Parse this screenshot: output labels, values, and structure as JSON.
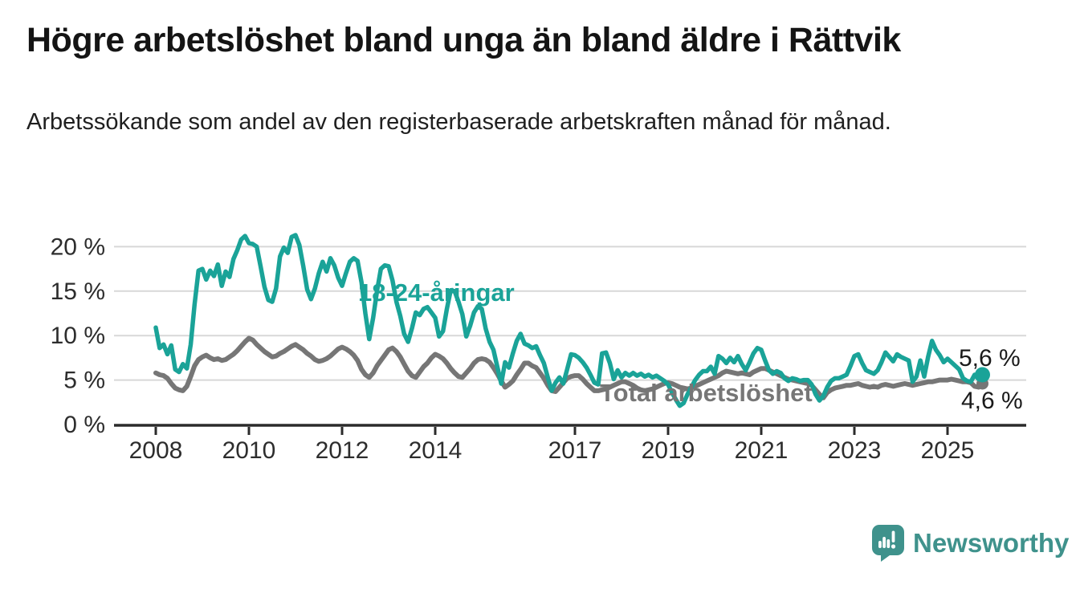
{
  "title": "Högre arbetslöshet bland unga än bland äldre i Rättvik",
  "subtitle": "Arbetssökande som andel av den registerbaserade arbetskraften månad för månad.",
  "branding": {
    "logo_text": "Newsworthy",
    "logo_color": "#3F928C",
    "logo_icon": "speech-bubble-bar-chart-icon"
  },
  "chart_data": {
    "type": "line",
    "title": "",
    "xlabel": "",
    "ylabel": "",
    "x_start_month": "2008-01",
    "x_end_month": "2025-10",
    "months_per_point": 1,
    "ylim": [
      0,
      22
    ],
    "grid": "horizontal",
    "y_ticks": [
      {
        "value": 0,
        "label": "0 %"
      },
      {
        "value": 5,
        "label": "5 %"
      },
      {
        "value": 10,
        "label": "10 %"
      },
      {
        "value": 15,
        "label": "15 %"
      },
      {
        "value": 20,
        "label": "20 %"
      }
    ],
    "x_ticks": [
      {
        "year": 2008,
        "label": "2008"
      },
      {
        "year": 2010,
        "label": "2010"
      },
      {
        "year": 2012,
        "label": "2012"
      },
      {
        "year": 2014,
        "label": "2014"
      },
      {
        "year": 2017,
        "label": "2017"
      },
      {
        "year": 2019,
        "label": "2019"
      },
      {
        "year": 2021,
        "label": "2021"
      },
      {
        "year": 2023,
        "label": "2023"
      },
      {
        "year": 2025,
        "label": "2025"
      }
    ],
    "series": [
      {
        "name": "Total arbetslöshet",
        "color": "#767676",
        "end_label": "4,6 %",
        "end_dot": true,
        "values": [
          5.8,
          5.6,
          5.5,
          5.2,
          4.6,
          4.1,
          3.9,
          3.8,
          4.3,
          5.4,
          6.6,
          7.3,
          7.6,
          7.8,
          7.5,
          7.3,
          7.4,
          7.2,
          7.3,
          7.6,
          7.9,
          8.3,
          8.8,
          9.3,
          9.7,
          9.5,
          9.0,
          8.6,
          8.2,
          7.9,
          7.6,
          7.7,
          8.0,
          8.2,
          8.5,
          8.8,
          9.0,
          8.7,
          8.4,
          8.0,
          7.7,
          7.3,
          7.1,
          7.2,
          7.4,
          7.7,
          8.1,
          8.5,
          8.7,
          8.5,
          8.2,
          7.8,
          7.2,
          6.2,
          5.6,
          5.3,
          5.8,
          6.6,
          7.2,
          7.8,
          8.4,
          8.6,
          8.2,
          7.6,
          6.8,
          6.0,
          5.5,
          5.3,
          5.9,
          6.5,
          6.9,
          7.5,
          7.9,
          7.7,
          7.4,
          6.9,
          6.3,
          5.8,
          5.4,
          5.3,
          5.8,
          6.3,
          6.9,
          7.3,
          7.4,
          7.3,
          7.0,
          6.4,
          5.7,
          4.9,
          4.2,
          4.5,
          4.9,
          5.6,
          6.2,
          6.9,
          6.9,
          6.6,
          6.4,
          5.8,
          5.2,
          4.4,
          3.8,
          3.7,
          4.2,
          4.7,
          5.2,
          5.4,
          5.5,
          5.5,
          5.1,
          4.6,
          4.2,
          3.8,
          3.8,
          3.9,
          4.0,
          4.2,
          4.4,
          4.6,
          4.8,
          4.8,
          4.6,
          4.4,
          4.1,
          3.9,
          3.8,
          3.9,
          4.0,
          4.2,
          4.4,
          4.6,
          4.7,
          4.6,
          4.4,
          4.2,
          4.1,
          4.0,
          4.1,
          4.3,
          4.5,
          4.7,
          4.9,
          5.1,
          5.3,
          5.5,
          5.8,
          6.0,
          5.9,
          5.8,
          5.7,
          5.8,
          5.7,
          5.6,
          5.9,
          6.1,
          6.3,
          6.3,
          6.1,
          5.9,
          5.7,
          5.5,
          5.3,
          5.1,
          5.0,
          4.9,
          4.8,
          4.7,
          4.6,
          4.4,
          3.9,
          3.4,
          3.0,
          3.6,
          3.9,
          4.1,
          4.2,
          4.3,
          4.4,
          4.4,
          4.5,
          4.6,
          4.4,
          4.3,
          4.2,
          4.3,
          4.2,
          4.4,
          4.5,
          4.4,
          4.3,
          4.4,
          4.5,
          4.6,
          4.5,
          4.4,
          4.5,
          4.6,
          4.7,
          4.8,
          4.8,
          4.9,
          5.0,
          5.0,
          5.0,
          5.1,
          5.0,
          4.9,
          4.8,
          4.8,
          4.7,
          4.3,
          4.2,
          4.6
        ]
      },
      {
        "name": "18-24-åringar",
        "color": "#1AA398",
        "end_label": "5,6 %",
        "end_dot": true,
        "values": [
          10.9,
          8.6,
          9.0,
          7.9,
          8.9,
          6.2,
          5.9,
          6.8,
          6.3,
          9.0,
          13.5,
          17.3,
          17.5,
          16.3,
          17.3,
          16.7,
          18.0,
          15.6,
          17.2,
          16.6,
          18.6,
          19.6,
          20.8,
          21.2,
          20.4,
          20.3,
          20.0,
          17.8,
          15.5,
          14.0,
          13.8,
          15.3,
          18.9,
          19.9,
          19.3,
          21.1,
          21.3,
          20.2,
          17.8,
          15.2,
          14.1,
          15.3,
          17.0,
          18.3,
          17.2,
          18.7,
          17.9,
          16.5,
          15.6,
          17.0,
          18.3,
          18.7,
          18.4,
          16.0,
          12.5,
          9.6,
          12.0,
          15.0,
          17.5,
          17.9,
          17.8,
          16.2,
          13.8,
          12.2,
          10.2,
          9.3,
          10.8,
          12.6,
          12.3,
          13.0,
          13.2,
          12.6,
          12.0,
          9.9,
          10.5,
          13.0,
          15.1,
          15.0,
          13.8,
          12.4,
          9.9,
          11.1,
          12.6,
          13.3,
          13.0,
          10.8,
          9.3,
          8.4,
          6.5,
          4.6,
          7.0,
          6.4,
          8.0,
          9.4,
          10.2,
          9.1,
          8.9,
          8.6,
          8.8,
          7.8,
          6.9,
          5.3,
          3.8,
          4.7,
          5.3,
          4.6,
          6.2,
          7.9,
          7.8,
          7.5,
          7.0,
          6.4,
          5.6,
          4.7,
          4.5,
          8.0,
          8.1,
          6.9,
          5.1,
          6.1,
          5.3,
          5.8,
          5.5,
          5.8,
          5.5,
          5.7,
          5.4,
          5.6,
          5.3,
          5.5,
          5.2,
          4.9,
          4.5,
          3.6,
          2.8,
          2.1,
          2.4,
          3.4,
          4.2,
          5.0,
          5.6,
          6.0,
          6.0,
          6.5,
          5.7,
          7.7,
          7.4,
          6.9,
          7.5,
          7.0,
          7.7,
          6.8,
          6.1,
          7.0,
          8.0,
          8.6,
          8.4,
          7.2,
          6.1,
          5.7,
          6.0,
          5.8,
          5.2,
          4.9,
          5.2,
          5.1,
          4.9,
          5.0,
          5.0,
          4.5,
          3.4,
          2.7,
          3.2,
          4.2,
          4.9,
          5.2,
          5.2,
          5.4,
          5.6,
          6.6,
          7.7,
          7.9,
          6.9,
          6.1,
          5.9,
          5.7,
          6.1,
          7.0,
          8.1,
          7.6,
          7.1,
          7.9,
          7.6,
          7.4,
          7.2,
          4.8,
          5.4,
          7.2,
          5.4,
          7.6,
          9.4,
          8.4,
          7.8,
          7.0,
          7.4,
          7.0,
          6.6,
          6.2,
          5.2,
          4.9,
          4.8,
          5.6,
          5.1,
          5.6
        ]
      }
    ],
    "annotations": {
      "young_series_label": "18-24-åringar",
      "total_series_label": "Total arbetslöshet",
      "young_end_value_label": "5,6 %",
      "total_end_value_label": "4,6 %"
    },
    "colors": {
      "young": "#1AA398",
      "total": "#767676",
      "grid": "#d8d8d8",
      "axis": "#2b2b2b",
      "tick_text": "#2d2d2d",
      "value_text": "#1a1a1a"
    }
  }
}
